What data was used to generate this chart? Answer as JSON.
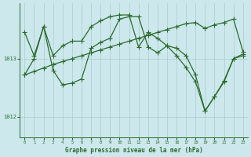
{
  "title": "Graphe pression niveau de la mer (hPa)",
  "background_color": "#cce8ec",
  "grid_color": "#aacccc",
  "line_color": "#2d6a2d",
  "xlim": [
    -0.5,
    23.5
  ],
  "ylim": [
    1011.65,
    1013.95
  ],
  "yticks": [
    1012,
    1013
  ],
  "xticks": [
    0,
    1,
    2,
    3,
    4,
    5,
    6,
    7,
    8,
    9,
    10,
    11,
    12,
    13,
    14,
    15,
    16,
    17,
    18,
    19,
    20,
    21,
    22,
    23
  ],
  "series1_x": [
    0,
    1,
    2,
    3,
    4,
    5,
    6,
    7,
    8,
    9,
    10,
    11,
    12,
    13,
    14,
    15,
    16,
    17,
    18,
    19,
    20,
    21,
    22,
    23
  ],
  "series1_y": [
    1012.72,
    1013.0,
    1013.55,
    1013.05,
    1013.22,
    1013.3,
    1013.3,
    1013.55,
    1013.65,
    1013.72,
    1013.75,
    1013.75,
    1013.2,
    1013.45,
    1013.35,
    1013.22,
    1013.05,
    1012.85,
    1012.6,
    1012.1,
    1012.35,
    1012.6,
    1013.0,
    1013.05
  ],
  "series2_x": [
    0,
    1,
    2,
    3,
    4,
    5,
    6,
    7,
    8,
    9,
    10,
    11,
    12,
    13,
    14,
    15,
    16,
    17,
    18,
    19,
    20,
    21,
    22,
    23
  ],
  "series2_y": [
    1012.72,
    1012.78,
    1012.84,
    1012.9,
    1012.95,
    1013.0,
    1013.05,
    1013.1,
    1013.15,
    1013.2,
    1013.25,
    1013.3,
    1013.35,
    1013.4,
    1013.45,
    1013.5,
    1013.55,
    1013.6,
    1013.62,
    1013.52,
    1013.58,
    1013.62,
    1013.68,
    1013.12
  ],
  "series3_x": [
    0,
    1,
    2,
    3,
    4,
    5,
    6,
    7,
    8,
    9,
    10,
    11,
    12,
    13,
    14,
    15,
    16,
    17,
    18,
    19,
    20,
    21,
    22,
    23
  ],
  "series3_y": [
    1013.45,
    1013.05,
    1013.55,
    1012.8,
    1012.55,
    1012.58,
    1012.65,
    1013.18,
    1013.28,
    1013.35,
    1013.68,
    1013.72,
    1013.72,
    1013.2,
    1013.1,
    1013.22,
    1013.18,
    1013.05,
    1012.72,
    1012.1,
    1012.35,
    1012.62,
    1013.0,
    1013.08
  ]
}
